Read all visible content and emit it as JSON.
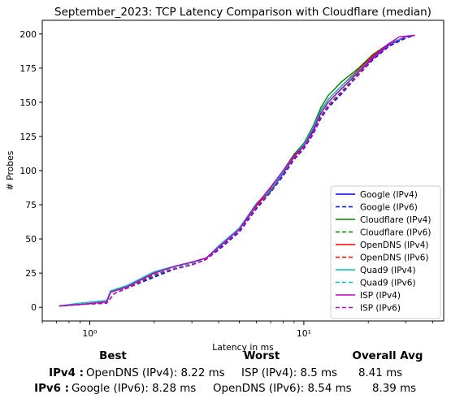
{
  "chart_data": {
    "type": "line",
    "title": "September_2023: TCP Latency Comparison with Cloudflare (median)",
    "xlabel": "Latency in ms",
    "ylabel": "# Probes",
    "xscale": "log",
    "xlim": [
      0.6,
      45
    ],
    "ylim": [
      -10,
      210
    ],
    "xticks": [
      {
        "value": 1,
        "label": "10⁰"
      },
      {
        "value": 10,
        "label": "10¹"
      }
    ],
    "yticks": [
      0,
      25,
      50,
      75,
      100,
      125,
      150,
      175,
      200
    ],
    "legend_position": "lower right",
    "grid": false,
    "series": [
      {
        "name": "Google (IPv4)",
        "color": "#0000ff",
        "dash": "solid",
        "points": [
          [
            0.72,
            1
          ],
          [
            0.9,
            2
          ],
          [
            1.2,
            4
          ],
          [
            1.25,
            11
          ],
          [
            1.5,
            16
          ],
          [
            2.0,
            26
          ],
          [
            2.5,
            30
          ],
          [
            3.0,
            33
          ],
          [
            3.5,
            36
          ],
          [
            4.0,
            44
          ],
          [
            5.0,
            58
          ],
          [
            6.0,
            75
          ],
          [
            7.0,
            85
          ],
          [
            8.0,
            98
          ],
          [
            9.0,
            110
          ],
          [
            10.0,
            118
          ],
          [
            11.0,
            128
          ],
          [
            12.0,
            142
          ],
          [
            13.0,
            150
          ],
          [
            15.0,
            160
          ],
          [
            18.0,
            172
          ],
          [
            21.0,
            182
          ],
          [
            25.0,
            192
          ],
          [
            30.0,
            198
          ],
          [
            33.0,
            199
          ]
        ]
      },
      {
        "name": "Google (IPv6)",
        "color": "#0000ff",
        "dash": "dashed",
        "points": [
          [
            0.72,
            1
          ],
          [
            0.9,
            2
          ],
          [
            1.2,
            3
          ],
          [
            1.3,
            10
          ],
          [
            1.5,
            14
          ],
          [
            2.0,
            22
          ],
          [
            2.5,
            28
          ],
          [
            3.0,
            31
          ],
          [
            3.5,
            35
          ],
          [
            4.0,
            42
          ],
          [
            5.0,
            55
          ],
          [
            6.0,
            72
          ],
          [
            7.0,
            84
          ],
          [
            8.0,
            96
          ],
          [
            9.0,
            108
          ],
          [
            10.0,
            116
          ],
          [
            11.0,
            126
          ],
          [
            12.0,
            138
          ],
          [
            13.0,
            146
          ],
          [
            15.0,
            156
          ],
          [
            18.0,
            170
          ],
          [
            21.0,
            181
          ],
          [
            25.0,
            191
          ],
          [
            30.0,
            197
          ],
          [
            33.0,
            199
          ]
        ]
      },
      {
        "name": "Cloudflare (IPv4)",
        "color": "#008000",
        "dash": "solid",
        "points": [
          [
            0.72,
            1
          ],
          [
            0.9,
            2
          ],
          [
            1.2,
            4
          ],
          [
            1.25,
            11
          ],
          [
            1.5,
            16
          ],
          [
            2.0,
            25
          ],
          [
            2.5,
            30
          ],
          [
            3.0,
            33
          ],
          [
            3.5,
            36
          ],
          [
            4.0,
            44
          ],
          [
            5.0,
            58
          ],
          [
            6.0,
            76
          ],
          [
            7.0,
            86
          ],
          [
            8.0,
            100
          ],
          [
            9.0,
            112
          ],
          [
            10.0,
            120
          ],
          [
            11.0,
            132
          ],
          [
            12.0,
            146
          ],
          [
            13.0,
            155
          ],
          [
            15.0,
            165
          ],
          [
            18.0,
            175
          ],
          [
            21.0,
            185
          ],
          [
            25.0,
            193
          ],
          [
            30.0,
            198
          ],
          [
            33.0,
            199
          ]
        ]
      },
      {
        "name": "Cloudflare (IPv6)",
        "color": "#008000",
        "dash": "dashed",
        "points": [
          [
            0.72,
            1
          ],
          [
            0.9,
            2
          ],
          [
            1.2,
            3
          ],
          [
            1.3,
            10
          ],
          [
            1.5,
            14
          ],
          [
            2.0,
            23
          ],
          [
            2.5,
            28
          ],
          [
            3.0,
            31
          ],
          [
            3.5,
            35
          ],
          [
            4.0,
            43
          ],
          [
            5.0,
            56
          ],
          [
            6.0,
            73
          ],
          [
            7.0,
            84
          ],
          [
            8.0,
            97
          ],
          [
            9.0,
            109
          ],
          [
            10.0,
            117
          ],
          [
            11.0,
            127
          ],
          [
            12.0,
            140
          ],
          [
            13.0,
            148
          ],
          [
            15.0,
            158
          ],
          [
            18.0,
            171
          ],
          [
            21.0,
            182
          ],
          [
            25.0,
            192
          ],
          [
            30.0,
            198
          ],
          [
            33.0,
            199
          ]
        ]
      },
      {
        "name": "OpenDNS (IPv4)",
        "color": "#ff0000",
        "dash": "solid",
        "points": [
          [
            0.72,
            1
          ],
          [
            0.9,
            2
          ],
          [
            1.2,
            4
          ],
          [
            1.25,
            11
          ],
          [
            1.5,
            15
          ],
          [
            2.0,
            25
          ],
          [
            2.5,
            30
          ],
          [
            3.0,
            33
          ],
          [
            3.5,
            36
          ],
          [
            4.0,
            44
          ],
          [
            5.0,
            57
          ],
          [
            6.0,
            74
          ],
          [
            7.0,
            87
          ],
          [
            8.0,
            99
          ],
          [
            9.0,
            110
          ],
          [
            10.0,
            118
          ],
          [
            11.0,
            130
          ],
          [
            12.0,
            144
          ],
          [
            13.0,
            152
          ],
          [
            15.0,
            162
          ],
          [
            18.0,
            174
          ],
          [
            21.0,
            184
          ],
          [
            25.0,
            193
          ],
          [
            30.0,
            198
          ],
          [
            33.0,
            199
          ]
        ]
      },
      {
        "name": "OpenDNS (IPv6)",
        "color": "#ff0000",
        "dash": "dashed",
        "points": [
          [
            0.72,
            1
          ],
          [
            0.9,
            2
          ],
          [
            1.2,
            3
          ],
          [
            1.3,
            10
          ],
          [
            1.5,
            14
          ],
          [
            2.0,
            24
          ],
          [
            2.5,
            28
          ],
          [
            3.0,
            31
          ],
          [
            3.5,
            35
          ],
          [
            4.0,
            43
          ],
          [
            5.0,
            56
          ],
          [
            6.0,
            74
          ],
          [
            7.0,
            85
          ],
          [
            8.0,
            97
          ],
          [
            9.0,
            109
          ],
          [
            10.0,
            117
          ],
          [
            11.0,
            127
          ],
          [
            12.0,
            139
          ],
          [
            13.0,
            147
          ],
          [
            15.0,
            157
          ],
          [
            18.0,
            170
          ],
          [
            21.0,
            182
          ],
          [
            25.0,
            192
          ],
          [
            30.0,
            198
          ],
          [
            33.0,
            199
          ]
        ]
      },
      {
        "name": "Quad9 (IPv4)",
        "color": "#00bfbf",
        "dash": "solid",
        "points": [
          [
            0.72,
            1
          ],
          [
            0.9,
            3
          ],
          [
            1.2,
            5
          ],
          [
            1.25,
            12
          ],
          [
            1.5,
            16
          ],
          [
            2.0,
            26
          ],
          [
            2.5,
            30
          ],
          [
            3.0,
            33
          ],
          [
            3.5,
            36
          ],
          [
            4.0,
            45
          ],
          [
            5.0,
            58
          ],
          [
            6.0,
            76
          ],
          [
            7.0,
            86
          ],
          [
            8.0,
            99
          ],
          [
            9.0,
            111
          ],
          [
            10.0,
            119
          ],
          [
            11.0,
            131
          ],
          [
            12.0,
            144
          ],
          [
            13.0,
            152
          ],
          [
            15.0,
            162
          ],
          [
            18.0,
            173
          ],
          [
            21.0,
            183
          ],
          [
            25.0,
            193
          ],
          [
            30.0,
            198
          ],
          [
            33.0,
            199
          ]
        ]
      },
      {
        "name": "Quad9 (IPv6)",
        "color": "#00bfbf",
        "dash": "dashed",
        "points": [
          [
            0.72,
            1
          ],
          [
            0.9,
            2
          ],
          [
            1.2,
            3
          ],
          [
            1.3,
            10
          ],
          [
            1.5,
            15
          ],
          [
            2.0,
            24
          ],
          [
            2.5,
            29
          ],
          [
            3.0,
            32
          ],
          [
            3.5,
            35
          ],
          [
            4.0,
            43
          ],
          [
            5.0,
            56
          ],
          [
            6.0,
            73
          ],
          [
            7.0,
            85
          ],
          [
            8.0,
            97
          ],
          [
            9.0,
            109
          ],
          [
            10.0,
            117
          ],
          [
            11.0,
            127
          ],
          [
            12.0,
            139
          ],
          [
            13.0,
            147
          ],
          [
            15.0,
            157
          ],
          [
            18.0,
            170
          ],
          [
            21.0,
            182
          ],
          [
            25.0,
            192
          ],
          [
            30.0,
            198
          ],
          [
            33.0,
            199
          ]
        ]
      },
      {
        "name": "ISP (IPv4)",
        "color": "#bf00bf",
        "dash": "solid",
        "points": [
          [
            0.72,
            1
          ],
          [
            0.9,
            2
          ],
          [
            1.2,
            4
          ],
          [
            1.25,
            11
          ],
          [
            1.5,
            15
          ],
          [
            2.0,
            25
          ],
          [
            2.5,
            30
          ],
          [
            3.0,
            33
          ],
          [
            3.5,
            36
          ],
          [
            4.0,
            44
          ],
          [
            5.0,
            57
          ],
          [
            6.0,
            75
          ],
          [
            7.0,
            88
          ],
          [
            8.0,
            100
          ],
          [
            9.0,
            111
          ],
          [
            10.0,
            118
          ],
          [
            11.0,
            129
          ],
          [
            12.0,
            142
          ],
          [
            13.0,
            150
          ],
          [
            15.0,
            160
          ],
          [
            18.0,
            172
          ],
          [
            21.0,
            183
          ],
          [
            25.0,
            193
          ],
          [
            28.0,
            198
          ],
          [
            33.0,
            199
          ]
        ]
      },
      {
        "name": "ISP (IPv6)",
        "color": "#bf00bf",
        "dash": "dashed",
        "points": [
          [
            0.72,
            1
          ],
          [
            0.9,
            2
          ],
          [
            1.2,
            3
          ],
          [
            1.3,
            10
          ],
          [
            1.5,
            14
          ],
          [
            2.0,
            24
          ],
          [
            2.5,
            28
          ],
          [
            3.0,
            31
          ],
          [
            3.5,
            35
          ],
          [
            4.0,
            43
          ],
          [
            5.0,
            56
          ],
          [
            6.0,
            73
          ],
          [
            7.0,
            85
          ],
          [
            8.0,
            97
          ],
          [
            9.0,
            109
          ],
          [
            10.0,
            117
          ],
          [
            11.0,
            127
          ],
          [
            12.0,
            139
          ],
          [
            13.0,
            147
          ],
          [
            15.0,
            157
          ],
          [
            18.0,
            170
          ],
          [
            21.0,
            182
          ],
          [
            25.0,
            192
          ],
          [
            30.0,
            198
          ],
          [
            33.0,
            199
          ]
        ]
      }
    ]
  },
  "summary": {
    "headers": {
      "best": "Best",
      "worst": "Worst",
      "avg": "Overall Avg"
    },
    "rows": [
      {
        "label": "IPv4 :",
        "best": "OpenDNS (IPv4): 8.22 ms",
        "worst": "ISP (IPv4): 8.5 ms",
        "avg": "8.41 ms"
      },
      {
        "label": "IPv6 :",
        "best": "Google (IPv6): 8.28 ms",
        "worst": "OpenDNS (IPv6): 8.54 ms",
        "avg": "8.39 ms"
      }
    ]
  }
}
